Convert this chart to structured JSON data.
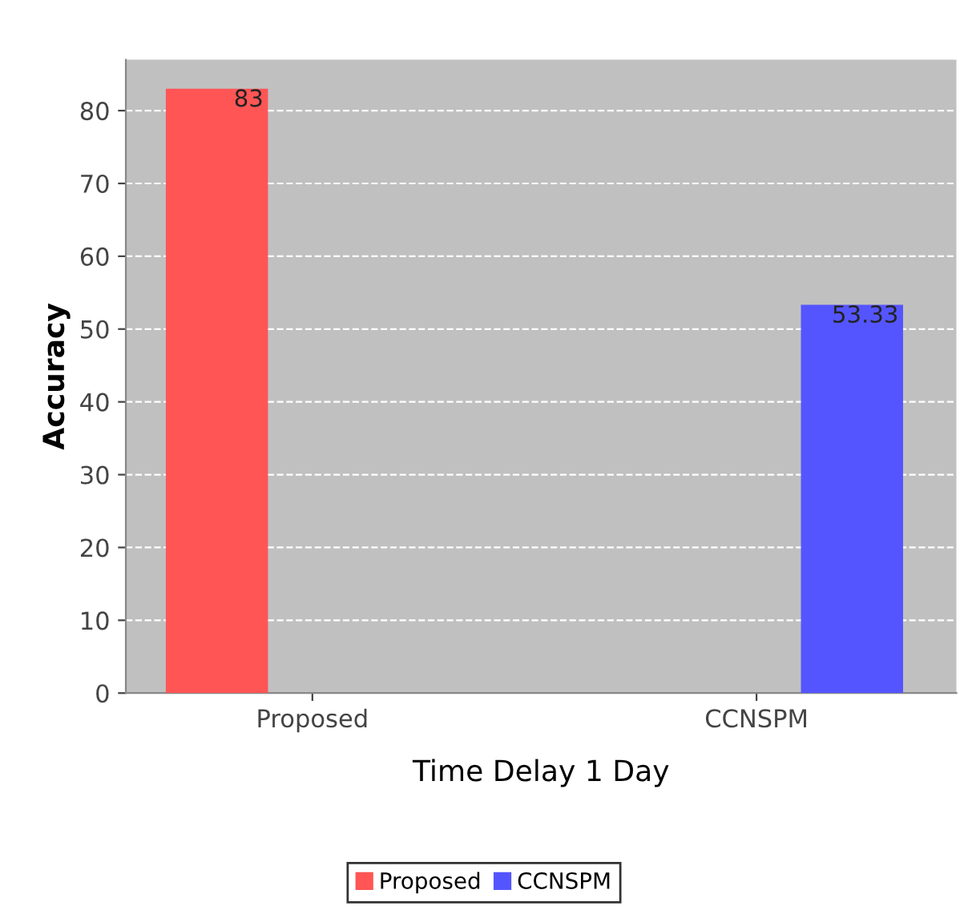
{
  "chart_data": {
    "type": "bar",
    "xlabel": "Time Delay 1 Day",
    "ylabel": "Accuracy",
    "categories": [
      "Proposed",
      "CCNSPM"
    ],
    "series": [
      {
        "name": "Proposed",
        "color": "#ff5555",
        "values": [
          83,
          null
        ]
      },
      {
        "name": "CCNSPM",
        "color": "#5555ff",
        "values": [
          null,
          53.33
        ]
      }
    ],
    "ylim": [
      0,
      87
    ],
    "yticks": [
      0,
      10,
      20,
      30,
      40,
      50,
      60,
      70,
      80
    ],
    "grid": "y",
    "legend": "bottom",
    "data_labels": true
  }
}
